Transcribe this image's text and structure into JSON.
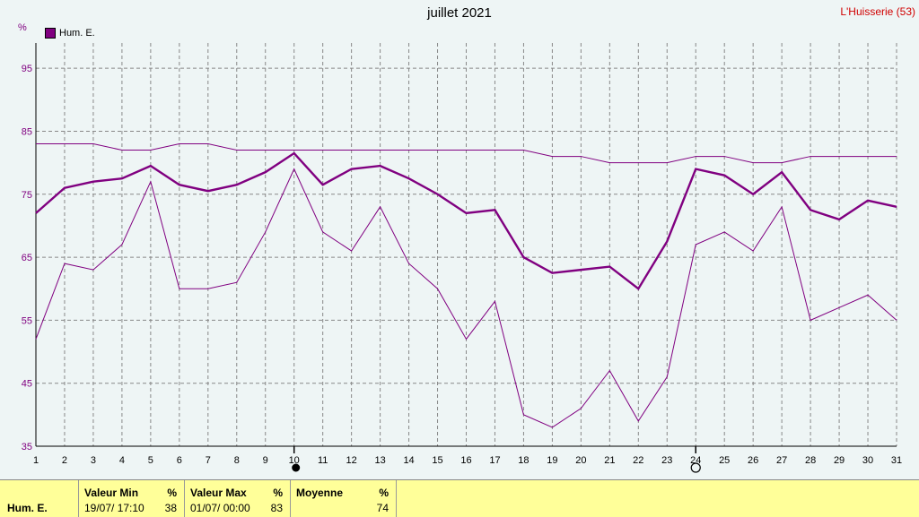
{
  "header": {
    "title": "juillet 2021",
    "station": "L'Huisserie (53)",
    "unit": "%"
  },
  "legend": {
    "label": "Hum. E.",
    "color": "#800080"
  },
  "chart_data": {
    "type": "line",
    "title": "juillet 2021",
    "ylabel": "%",
    "ylim": [
      35,
      99
    ],
    "yticks": [
      35,
      45,
      55,
      65,
      75,
      85,
      95
    ],
    "x": [
      1,
      2,
      3,
      4,
      5,
      6,
      7,
      8,
      9,
      10,
      11,
      12,
      13,
      14,
      15,
      16,
      17,
      18,
      19,
      20,
      21,
      22,
      23,
      24,
      25,
      26,
      27,
      28,
      29,
      30,
      31
    ],
    "series": [
      {
        "name": "Hum. E.",
        "role": "mean",
        "color": "#800080",
        "values": [
          72,
          76,
          77,
          77.5,
          79.5,
          76.5,
          75.5,
          76.5,
          78.5,
          81.5,
          76.5,
          79,
          79.5,
          77.5,
          75,
          72,
          72.5,
          65,
          62.5,
          63,
          63.5,
          60,
          67.5,
          79,
          78,
          75,
          78.5,
          72.5,
          71,
          74,
          73
        ]
      },
      {
        "role": "max",
        "color": "#800080",
        "values": [
          83,
          83,
          83,
          82,
          82,
          83,
          83,
          82,
          82,
          82,
          82,
          82,
          82,
          82,
          82,
          82,
          82,
          82,
          81,
          81,
          80,
          80,
          80,
          81,
          81,
          80,
          80,
          81,
          81,
          81,
          81
        ]
      },
      {
        "role": "min",
        "color": "#800080",
        "values": [
          52,
          64,
          63,
          67,
          77,
          60,
          60,
          61,
          69,
          79,
          69,
          66,
          73,
          64,
          60,
          52,
          58,
          40,
          38,
          41,
          47,
          39,
          46,
          67,
          69,
          66,
          73,
          55,
          57,
          59,
          55
        ]
      }
    ],
    "markers": [
      {
        "x": 10,
        "type": "filled-circle"
      },
      {
        "x": 24,
        "type": "open-circle"
      }
    ],
    "grid": true
  },
  "stats": {
    "row_label": "Hum. E.",
    "min": {
      "title": "Valeur Min",
      "unit": "%",
      "date": "19/07/ 17:10",
      "value": "38"
    },
    "max": {
      "title": "Valeur Max",
      "unit": "%",
      "date": "01/07/ 00:00",
      "value": "83"
    },
    "avg": {
      "title": "Moyenne",
      "unit": "%",
      "value": "74"
    }
  }
}
